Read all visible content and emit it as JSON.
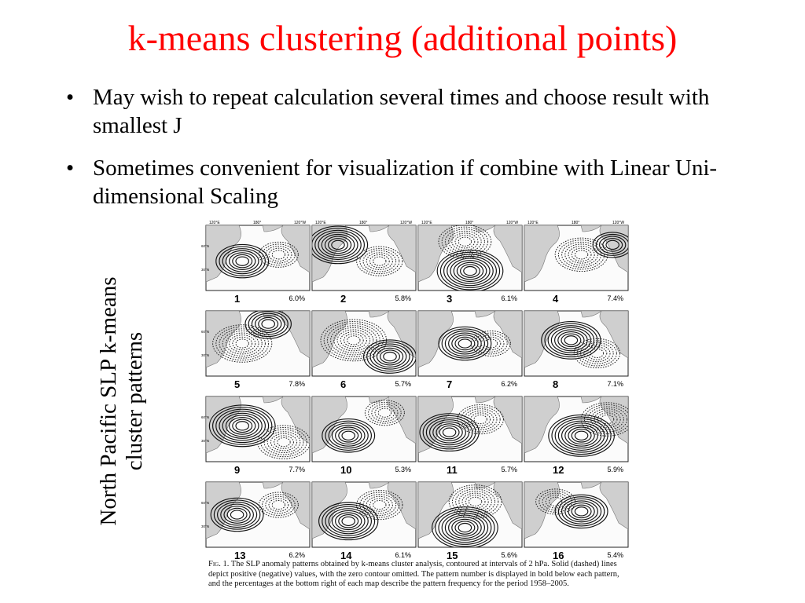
{
  "slide": {
    "title": "k-means clustering (additional points)",
    "bullets": [
      "May wish to repeat calculation several times and choose result with smallest J",
      "Sometimes convenient for visualization if combine with Linear Uni-dimensional Scaling"
    ],
    "bullet_symbol": "•",
    "vertical_caption": "North Pacific SLP k-means cluster patterns"
  },
  "figure": {
    "lon_labels": [
      "120°E",
      "180°",
      "120°W"
    ],
    "lat_labels": [
      "60°N",
      "30°N"
    ],
    "panels": [
      {
        "number": "1",
        "percent": "6.0%"
      },
      {
        "number": "2",
        "percent": "5.8%"
      },
      {
        "number": "3",
        "percent": "6.1%"
      },
      {
        "number": "4",
        "percent": "7.4%"
      },
      {
        "number": "5",
        "percent": "7.8%"
      },
      {
        "number": "6",
        "percent": "5.7%"
      },
      {
        "number": "7",
        "percent": "6.2%"
      },
      {
        "number": "8",
        "percent": "7.1%"
      },
      {
        "number": "9",
        "percent": "7.7%"
      },
      {
        "number": "10",
        "percent": "5.3%"
      },
      {
        "number": "11",
        "percent": "5.7%"
      },
      {
        "number": "12",
        "percent": "5.9%"
      },
      {
        "number": "13",
        "percent": "6.2%"
      },
      {
        "number": "14",
        "percent": "6.1%"
      },
      {
        "number": "15",
        "percent": "5.6%"
      },
      {
        "number": "16",
        "percent": "5.4%"
      }
    ],
    "caption_label": "Fig. 1.",
    "caption_text": "The SLP anomaly patterns obtained by k-means cluster analysis, contoured at intervals of 2 hPa. Solid (dashed) lines depict positive (negative) values, with the zero contour omitted. The pattern number is displayed in bold below each pattern, and the percentages at the bottom right of each map describe the pattern frequency for the period 1958–2005."
  }
}
